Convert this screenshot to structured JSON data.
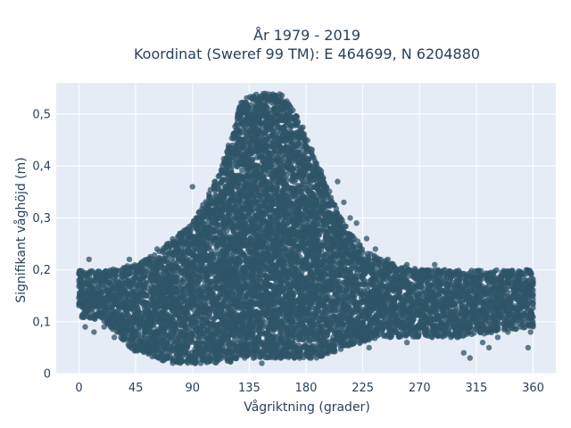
{
  "chart_data": {
    "type": "scatter",
    "title_line1": "År 1979 - 2019",
    "title_line2": "Koordinat (Sweref 99 TM): E 464699, N 6204880",
    "xlabel": "Vågriktning (grader)",
    "ylabel": "Signifikant våghöjd (m)",
    "xlim": [
      -18,
      378
    ],
    "ylim": [
      0,
      0.56
    ],
    "x_ticks": [
      0,
      45,
      90,
      135,
      180,
      225,
      270,
      315,
      360
    ],
    "x_tick_labels": [
      "0",
      "45",
      "90",
      "135",
      "180",
      "225",
      "270",
      "315",
      "360"
    ],
    "y_ticks": [
      0,
      0.1,
      0.2,
      0.3,
      0.4,
      0.5
    ],
    "y_tick_labels": [
      "0",
      "0,1",
      "0,2",
      "0,3",
      "0,4",
      "0,5"
    ],
    "grid": true,
    "legend": "none",
    "background_color": "#e5ecf6",
    "marker_color": "#2f5468",
    "envelope": [
      {
        "x": 0,
        "ymin": 0.11,
        "ymax": 0.2
      },
      {
        "x": 20,
        "ymin": 0.1,
        "ymax": 0.2
      },
      {
        "x": 45,
        "ymin": 0.04,
        "ymax": 0.21
      },
      {
        "x": 60,
        "ymin": 0.03,
        "ymax": 0.23
      },
      {
        "x": 75,
        "ymin": 0.02,
        "ymax": 0.26
      },
      {
        "x": 90,
        "ymin": 0.02,
        "ymax": 0.29
      },
      {
        "x": 100,
        "ymin": 0.02,
        "ymax": 0.33
      },
      {
        "x": 110,
        "ymin": 0.02,
        "ymax": 0.38
      },
      {
        "x": 120,
        "ymin": 0.02,
        "ymax": 0.45
      },
      {
        "x": 128,
        "ymin": 0.03,
        "ymax": 0.52
      },
      {
        "x": 135,
        "ymin": 0.03,
        "ymax": 0.54
      },
      {
        "x": 160,
        "ymin": 0.03,
        "ymax": 0.54
      },
      {
        "x": 170,
        "ymin": 0.03,
        "ymax": 0.51
      },
      {
        "x": 180,
        "ymin": 0.03,
        "ymax": 0.46
      },
      {
        "x": 190,
        "ymin": 0.03,
        "ymax": 0.4
      },
      {
        "x": 200,
        "ymin": 0.04,
        "ymax": 0.34
      },
      {
        "x": 210,
        "ymin": 0.05,
        "ymax": 0.29
      },
      {
        "x": 225,
        "ymin": 0.06,
        "ymax": 0.24
      },
      {
        "x": 250,
        "ymin": 0.07,
        "ymax": 0.21
      },
      {
        "x": 270,
        "ymin": 0.07,
        "ymax": 0.2
      },
      {
        "x": 300,
        "ymin": 0.07,
        "ymax": 0.2
      },
      {
        "x": 330,
        "ymin": 0.08,
        "ymax": 0.2
      },
      {
        "x": 360,
        "ymin": 0.09,
        "ymax": 0.2
      }
    ],
    "outliers": [
      {
        "x": 2,
        "y": 0.18
      },
      {
        "x": 5,
        "y": 0.09
      },
      {
        "x": 8,
        "y": 0.22
      },
      {
        "x": 12,
        "y": 0.08
      },
      {
        "x": 20,
        "y": 0.09
      },
      {
        "x": 28,
        "y": 0.07
      },
      {
        "x": 35,
        "y": 0.09
      },
      {
        "x": 40,
        "y": 0.22
      },
      {
        "x": 48,
        "y": 0.05
      },
      {
        "x": 55,
        "y": 0.22
      },
      {
        "x": 62,
        "y": 0.24
      },
      {
        "x": 70,
        "y": 0.25
      },
      {
        "x": 80,
        "y": 0.27
      },
      {
        "x": 88,
        "y": 0.27
      },
      {
        "x": 95,
        "y": 0.31
      },
      {
        "x": 102,
        "y": 0.3
      },
      {
        "x": 108,
        "y": 0.37
      },
      {
        "x": 112,
        "y": 0.34
      },
      {
        "x": 116,
        "y": 0.41
      },
      {
        "x": 90,
        "y": 0.36
      },
      {
        "x": 98,
        "y": 0.3
      },
      {
        "x": 178,
        "y": 0.46
      },
      {
        "x": 185,
        "y": 0.42
      },
      {
        "x": 192,
        "y": 0.39
      },
      {
        "x": 196,
        "y": 0.36
      },
      {
        "x": 205,
        "y": 0.37
      },
      {
        "x": 210,
        "y": 0.33
      },
      {
        "x": 215,
        "y": 0.3
      },
      {
        "x": 220,
        "y": 0.29
      },
      {
        "x": 228,
        "y": 0.26
      },
      {
        "x": 235,
        "y": 0.24
      },
      {
        "x": 245,
        "y": 0.22
      },
      {
        "x": 260,
        "y": 0.21
      },
      {
        "x": 282,
        "y": 0.21
      },
      {
        "x": 290,
        "y": 0.2
      },
      {
        "x": 300,
        "y": 0.07
      },
      {
        "x": 305,
        "y": 0.04
      },
      {
        "x": 310,
        "y": 0.03
      },
      {
        "x": 320,
        "y": 0.06
      },
      {
        "x": 325,
        "y": 0.05
      },
      {
        "x": 332,
        "y": 0.07
      },
      {
        "x": 340,
        "y": 0.08
      },
      {
        "x": 350,
        "y": 0.09
      },
      {
        "x": 356,
        "y": 0.05
      },
      {
        "x": 358,
        "y": 0.08
      },
      {
        "x": 145,
        "y": 0.02
      },
      {
        "x": 160,
        "y": 0.03
      },
      {
        "x": 175,
        "y": 0.03
      },
      {
        "x": 185,
        "y": 0.04
      },
      {
        "x": 195,
        "y": 0.05
      },
      {
        "x": 230,
        "y": 0.05
      },
      {
        "x": 260,
        "y": 0.06
      },
      {
        "x": 280,
        "y": 0.07
      }
    ]
  }
}
